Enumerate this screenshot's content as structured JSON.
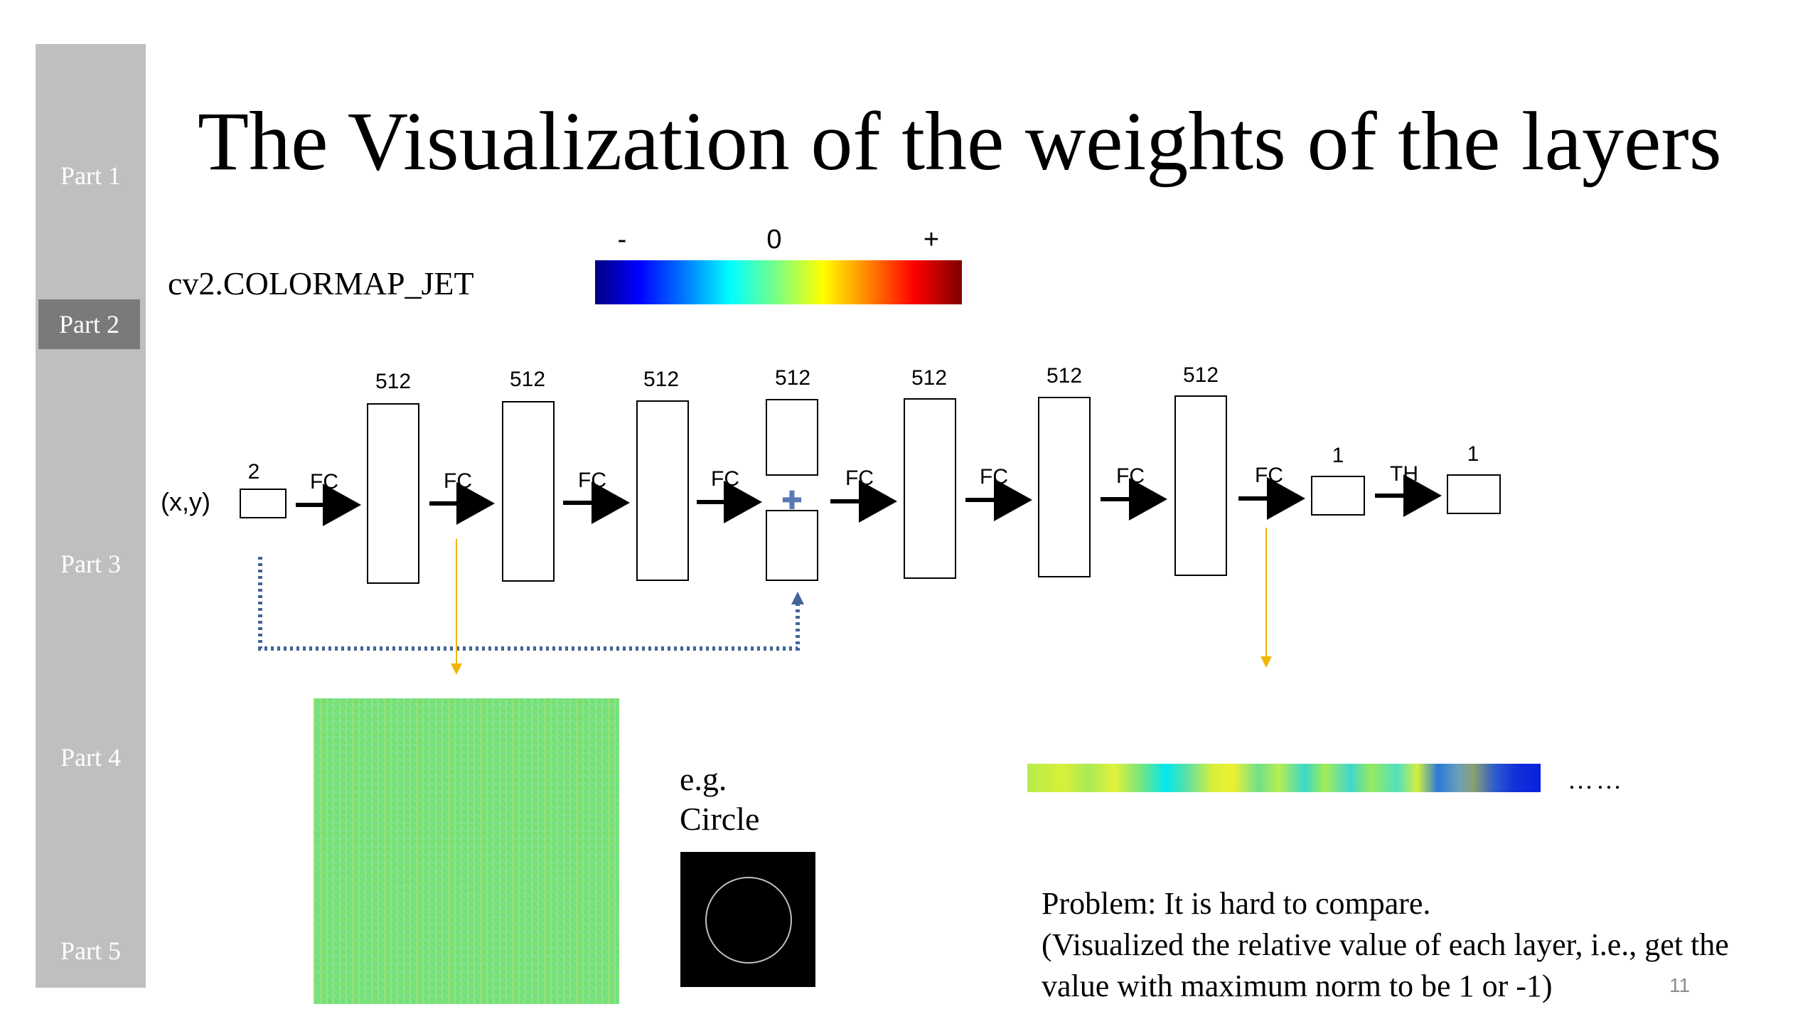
{
  "sidebar": {
    "items": [
      {
        "label": "Part 1",
        "active": false
      },
      {
        "label": "Part 2",
        "active": true
      },
      {
        "label": "Part 3",
        "active": false
      },
      {
        "label": "Part 4",
        "active": false
      },
      {
        "label": "Part 5",
        "active": false
      }
    ]
  },
  "slide": {
    "title": "The Visualization of the weights of the layers",
    "colormap_label": "cv2.COLORMAP_JET",
    "colorbar_ticks": {
      "minus": "-",
      "zero": "0",
      "plus": "+"
    },
    "example_label_line1": "e.g.",
    "example_label_line2": "Circle",
    "ellipsis": "……",
    "problem_line1": "Problem: It is hard to compare.",
    "problem_line2": "(Visualized the relative value of each layer, i.e., get the",
    "problem_line3": "value with maximum norm to be 1 or -1)",
    "page_number": "11"
  },
  "diagram": {
    "input_label": "(x,y)",
    "input_dim": "2",
    "fc_label": "FC",
    "th_label": "TH",
    "hidden_dim": "512",
    "output_dim": "1",
    "plus_symbol": "✚"
  },
  "colors": {
    "sidebar": "#bfbfbf",
    "sidebar_active": "#7a7a7a",
    "arrow_orange": "#f2b600",
    "skip_dotted_blue": "#44649b"
  }
}
